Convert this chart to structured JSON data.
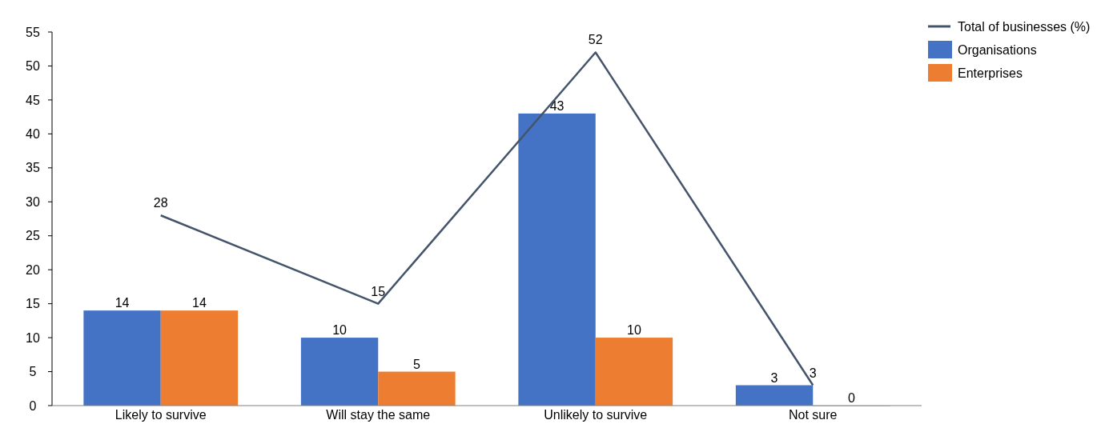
{
  "chart_data": {
    "type": "bar",
    "categories": [
      "Likely to survive",
      "Will stay the same",
      "Unlikely to survive",
      "Not sure"
    ],
    "series": [
      {
        "name": "Total of businesses (%)",
        "type": "line",
        "color": "#44546a",
        "values": [
          28,
          15,
          52,
          3
        ]
      },
      {
        "name": "Organisations",
        "color": "#4472c4",
        "values": [
          14,
          10,
          43,
          3
        ]
      },
      {
        "name": "Enterprises",
        "color": "#ed7d31",
        "values": [
          14,
          5,
          10,
          0
        ]
      }
    ],
    "ylim": [
      0,
      55
    ],
    "yticks": [
      0,
      5,
      10,
      15,
      20,
      25,
      30,
      35,
      40,
      45,
      50,
      55
    ],
    "grid": false,
    "legend": "top right",
    "data_labels": true
  }
}
